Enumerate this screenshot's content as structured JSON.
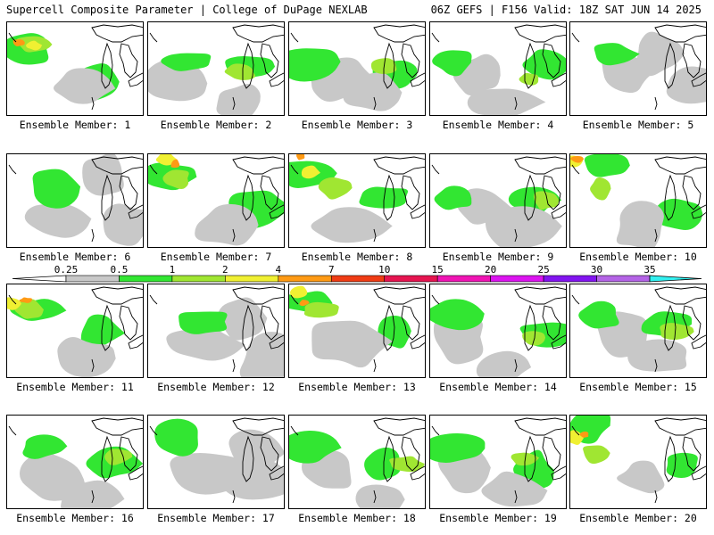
{
  "header": {
    "left_title": "Supercell Composite Parameter | College of DuPage NEXLAB",
    "right_title": "06Z GEFS | F156 Valid: 18Z SAT JUN 14 2025"
  },
  "colorbar": {
    "ticks": [
      "0.25",
      "0.5",
      "1",
      "2",
      "4",
      "7",
      "10",
      "15",
      "20",
      "25",
      "30",
      "35"
    ],
    "colors": [
      "#c8c8c8",
      "#32e632",
      "#a0e632",
      "#f0f032",
      "#ff9a14",
      "#f03c14",
      "#e61450",
      "#f014b4",
      "#dc14f0",
      "#8214f0",
      "#b464e6",
      "#32f0f0"
    ]
  },
  "palette": {
    "gray": "#c8c8c8",
    "green": "#32e632",
    "lime": "#a0e632",
    "yellow": "#f0f032",
    "orange": "#ff9a14",
    "red": "#f03c14",
    "coast": "#000000"
  },
  "panels": [
    {
      "label": "Ensemble Member: 1",
      "level": "high"
    },
    {
      "label": "Ensemble Member: 2",
      "level": "moderate"
    },
    {
      "label": "Ensemble Member: 3",
      "level": "moderate"
    },
    {
      "label": "Ensemble Member: 4",
      "level": "moderate"
    },
    {
      "label": "Ensemble Member: 5",
      "level": "low"
    },
    {
      "label": "Ensemble Member: 6",
      "level": "low"
    },
    {
      "label": "Ensemble Member: 7",
      "level": "high"
    },
    {
      "label": "Ensemble Member: 8",
      "level": "high"
    },
    {
      "label": "Ensemble Member: 9",
      "level": "moderate"
    },
    {
      "label": "Ensemble Member: 10",
      "level": "high"
    },
    {
      "label": "Ensemble Member: 11",
      "level": "high"
    },
    {
      "label": "Ensemble Member: 12",
      "level": "low"
    },
    {
      "label": "Ensemble Member: 13",
      "level": "high"
    },
    {
      "label": "Ensemble Member: 14",
      "level": "moderate"
    },
    {
      "label": "Ensemble Member: 15",
      "level": "moderate"
    },
    {
      "label": "Ensemble Member: 16",
      "level": "moderate"
    },
    {
      "label": "Ensemble Member: 17",
      "level": "low"
    },
    {
      "label": "Ensemble Member: 18",
      "level": "moderate"
    },
    {
      "label": "Ensemble Member: 19",
      "level": "moderate"
    },
    {
      "label": "Ensemble Member: 20",
      "level": "high"
    }
  ]
}
